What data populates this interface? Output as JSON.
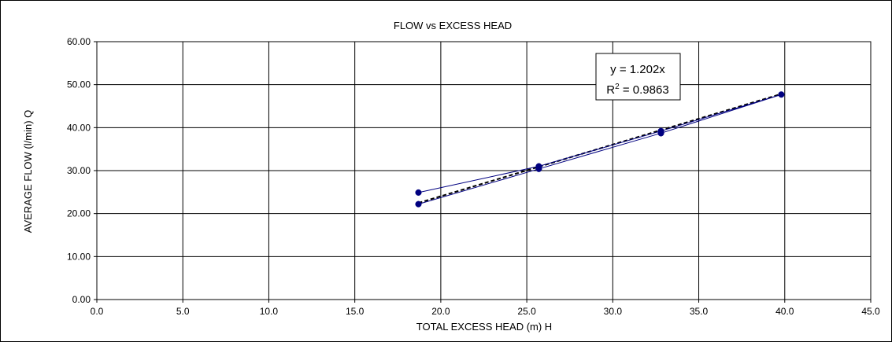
{
  "chart_data": {
    "type": "scatter",
    "title": "FLOW vs EXCESS HEAD",
    "xlabel": "TOTAL EXCESS HEAD (m)  H",
    "ylabel": "AVERAGE FLOW (l/min)  Q",
    "xlim": [
      0,
      45
    ],
    "ylim": [
      0,
      60
    ],
    "x_ticks": [
      "0.0",
      "5.0",
      "10.0",
      "15.0",
      "20.0",
      "25.0",
      "30.0",
      "35.0",
      "40.0",
      "45.0"
    ],
    "y_ticks": [
      "0.00",
      "10.00",
      "20.00",
      "30.00",
      "40.00",
      "50.00",
      "60.00"
    ],
    "x_tick_values": [
      0,
      5,
      10,
      15,
      20,
      25,
      30,
      35,
      40,
      45
    ],
    "y_tick_values": [
      0,
      10,
      20,
      30,
      40,
      50,
      60
    ],
    "grid": true,
    "series": [
      {
        "color": "#000080",
        "marker": "circle",
        "connected": true,
        "points": [
          {
            "x": 18.7,
            "y": 24.9
          },
          {
            "x": 25.7,
            "y": 31.0
          },
          {
            "x": 32.8,
            "y": 39.2
          },
          {
            "x": 39.8,
            "y": 47.7
          },
          {
            "x": 32.8,
            "y": 38.7
          },
          {
            "x": 25.7,
            "y": 30.4
          },
          {
            "x": 18.7,
            "y": 22.2
          }
        ]
      }
    ],
    "trendline": {
      "type": "linear",
      "slope": 1.202,
      "intercept": 0,
      "x_range": [
        18.7,
        39.8
      ],
      "style": "dashed",
      "color": "#000000"
    },
    "annotation": {
      "equation": "y = 1.202x",
      "r_prefix": "R",
      "r_superscript": "2",
      "r_value": " = 0.9863"
    }
  }
}
